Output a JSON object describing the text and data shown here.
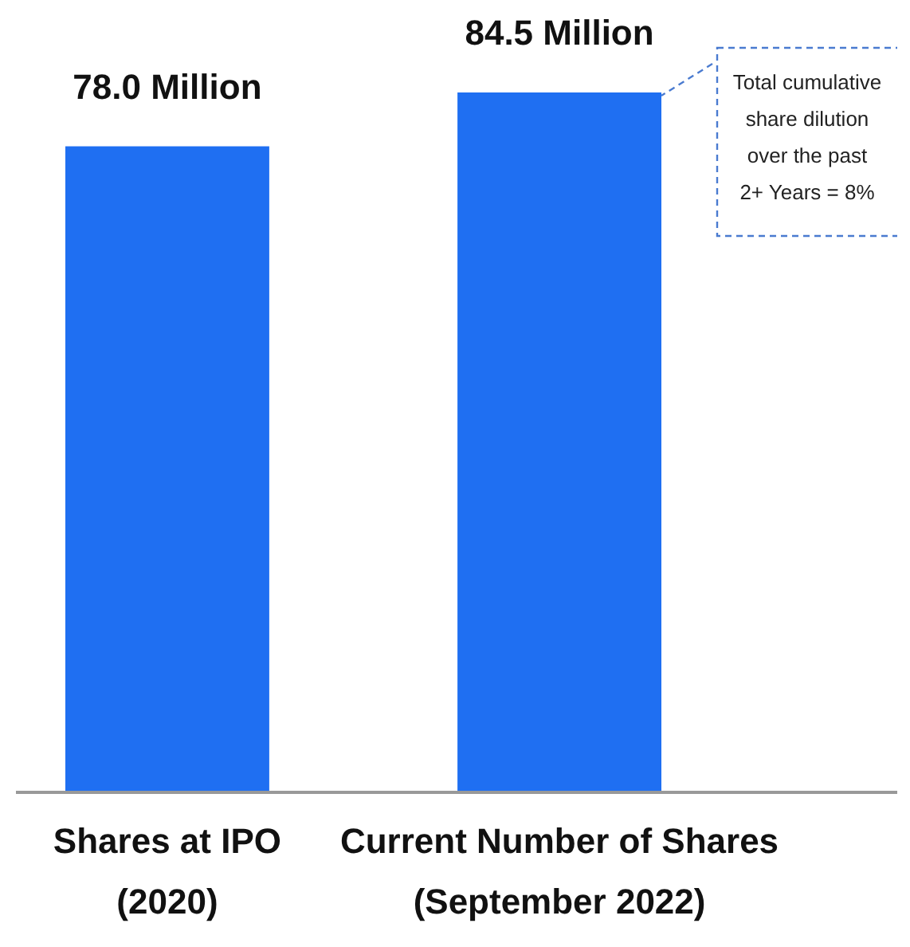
{
  "chart_data": {
    "type": "bar",
    "categories": [
      "Shares at IPO\n(2020)",
      "Current Number of Shares\n(September 2022)"
    ],
    "values": [
      78.0,
      84.5
    ],
    "color": "#1f6ff2",
    "value_labels": [
      "78.0 Million",
      "84.5 Million"
    ],
    "annotations": [
      "Total cumulative\nshare dilution\nover the past\n2+ Years = 8%"
    ]
  }
}
